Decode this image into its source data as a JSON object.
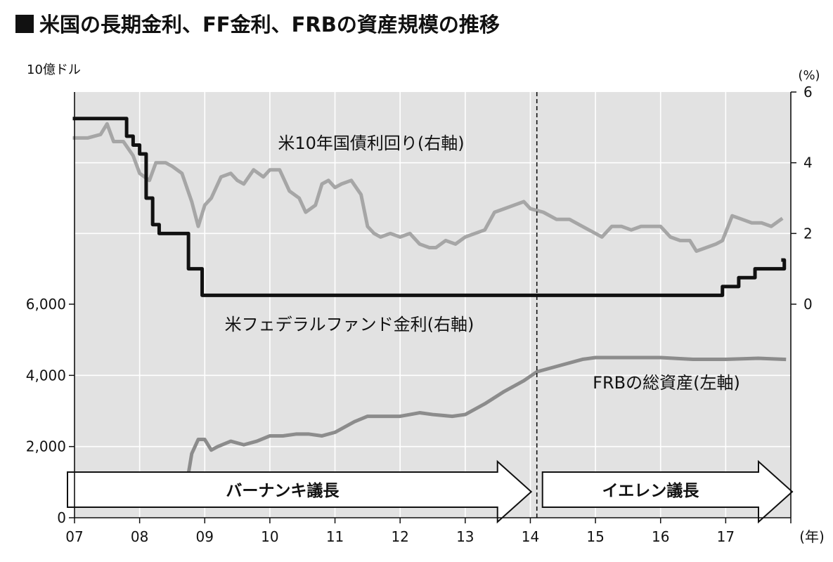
{
  "title": "米国の長期金利、FF金利、FRBの資産規模の推移",
  "chart_data": {
    "type": "line",
    "title": "米国の長期金利、FF金利、FRBの資産規模の推移",
    "left_axis": {
      "unit": "10億ドル",
      "range": [
        0,
        6000
      ],
      "ticks": [
        "0",
        "2,000",
        "4,000",
        "6,000"
      ]
    },
    "right_axis": {
      "unit": "(%)",
      "range": [
        0,
        6
      ],
      "ticks": [
        "0",
        "2",
        "4",
        "6"
      ]
    },
    "x_axis": {
      "unit": "(年)",
      "range": [
        2007,
        2018
      ],
      "ticks": [
        "07",
        "08",
        "09",
        "10",
        "11",
        "12",
        "13",
        "14",
        "15",
        "16",
        "17"
      ]
    },
    "grid": true,
    "series": [
      {
        "name": "米10年国債利回り(右軸)",
        "label": "米10年国債利回り(右軸)",
        "axis": "right",
        "color": "#a6a6a6",
        "x": [
          2007.0,
          2007.2,
          2007.4,
          2007.5,
          2007.6,
          2007.75,
          2007.9,
          2008.0,
          2008.15,
          2008.25,
          2008.4,
          2008.5,
          2008.65,
          2008.8,
          2008.9,
          2009.0,
          2009.1,
          2009.25,
          2009.4,
          2009.5,
          2009.6,
          2009.75,
          2009.9,
          2010.0,
          2010.15,
          2010.3,
          2010.45,
          2010.55,
          2010.7,
          2010.8,
          2010.9,
          2011.0,
          2011.1,
          2011.25,
          2011.4,
          2011.5,
          2011.6,
          2011.7,
          2011.85,
          2012.0,
          2012.15,
          2012.3,
          2012.45,
          2012.55,
          2012.7,
          2012.85,
          2013.0,
          2013.15,
          2013.3,
          2013.45,
          2013.6,
          2013.75,
          2013.9,
          2014.0,
          2014.2,
          2014.4,
          2014.6,
          2014.8,
          2015.0,
          2015.1,
          2015.25,
          2015.4,
          2015.55,
          2015.7,
          2015.85,
          2016.0,
          2016.15,
          2016.3,
          2016.45,
          2016.55,
          2016.7,
          2016.85,
          2016.95,
          2017.1,
          2017.25,
          2017.4,
          2017.55,
          2017.7,
          2017.85
        ],
        "values": [
          4.7,
          4.7,
          4.8,
          5.1,
          4.6,
          4.6,
          4.2,
          3.7,
          3.5,
          4.0,
          4.0,
          3.9,
          3.7,
          2.9,
          2.2,
          2.8,
          3.0,
          3.6,
          3.7,
          3.5,
          3.4,
          3.8,
          3.6,
          3.8,
          3.8,
          3.2,
          3.0,
          2.6,
          2.8,
          3.4,
          3.5,
          3.3,
          3.4,
          3.5,
          3.1,
          2.2,
          2.0,
          1.9,
          2.0,
          1.9,
          2.0,
          1.7,
          1.6,
          1.6,
          1.8,
          1.7,
          1.9,
          2.0,
          2.1,
          2.6,
          2.7,
          2.8,
          2.9,
          2.7,
          2.6,
          2.4,
          2.4,
          2.2,
          2.0,
          1.9,
          2.2,
          2.2,
          2.1,
          2.2,
          2.2,
          2.2,
          1.9,
          1.8,
          1.8,
          1.5,
          1.6,
          1.7,
          1.8,
          2.5,
          2.4,
          2.3,
          2.3,
          2.2,
          2.4
        ]
      },
      {
        "name": "米フェデラルファンド金利(右軸)",
        "label": "米フェデラルファンド金利(右軸)",
        "axis": "right",
        "color": "#111111",
        "x": [
          2007.0,
          2007.7,
          2007.8,
          2007.9,
          2008.0,
          2008.1,
          2008.2,
          2008.3,
          2008.5,
          2008.75,
          2008.85,
          2008.96,
          2015.96,
          2016.95,
          2017.2,
          2017.45,
          2017.9
        ],
        "values": [
          5.25,
          5.25,
          4.75,
          4.5,
          4.25,
          3.0,
          2.25,
          2.0,
          2.0,
          1.0,
          1.0,
          0.25,
          0.25,
          0.5,
          0.75,
          1.0,
          1.25
        ],
        "step": true
      },
      {
        "name": "FRBの総資産(左軸)",
        "label": "FRBの総資産(左軸)",
        "axis": "left",
        "color": "#8c8c8c",
        "x": [
          2007.0,
          2007.5,
          2008.0,
          2008.3,
          2008.6,
          2008.72,
          2008.8,
          2008.9,
          2009.0,
          2009.1,
          2009.2,
          2009.4,
          2009.6,
          2009.8,
          2010.0,
          2010.2,
          2010.4,
          2010.6,
          2010.8,
          2011.0,
          2011.3,
          2011.5,
          2011.7,
          2012.0,
          2012.3,
          2012.5,
          2012.8,
          2013.0,
          2013.3,
          2013.6,
          2013.9,
          2014.1,
          2014.5,
          2014.8,
          2015.0,
          2015.5,
          2016.0,
          2016.5,
          2017.0,
          2017.5,
          2017.9
        ],
        "values": [
          880,
          880,
          900,
          900,
          900,
          920,
          1800,
          2200,
          2200,
          1900,
          2000,
          2150,
          2050,
          2150,
          2300,
          2300,
          2350,
          2350,
          2300,
          2400,
          2700,
          2850,
          2850,
          2850,
          2950,
          2900,
          2850,
          2900,
          3200,
          3550,
          3850,
          4100,
          4300,
          4450,
          4500,
          4500,
          4500,
          4450,
          4450,
          4480,
          4450
        ]
      }
    ],
    "periods": [
      {
        "label": "バーナンキ議長",
        "from": 2007.0,
        "to": 2014.1
      },
      {
        "label": "イエレン議長",
        "from": 2014.1,
        "to": 2018.0
      }
    ],
    "marker_line_x": 2014.1
  }
}
